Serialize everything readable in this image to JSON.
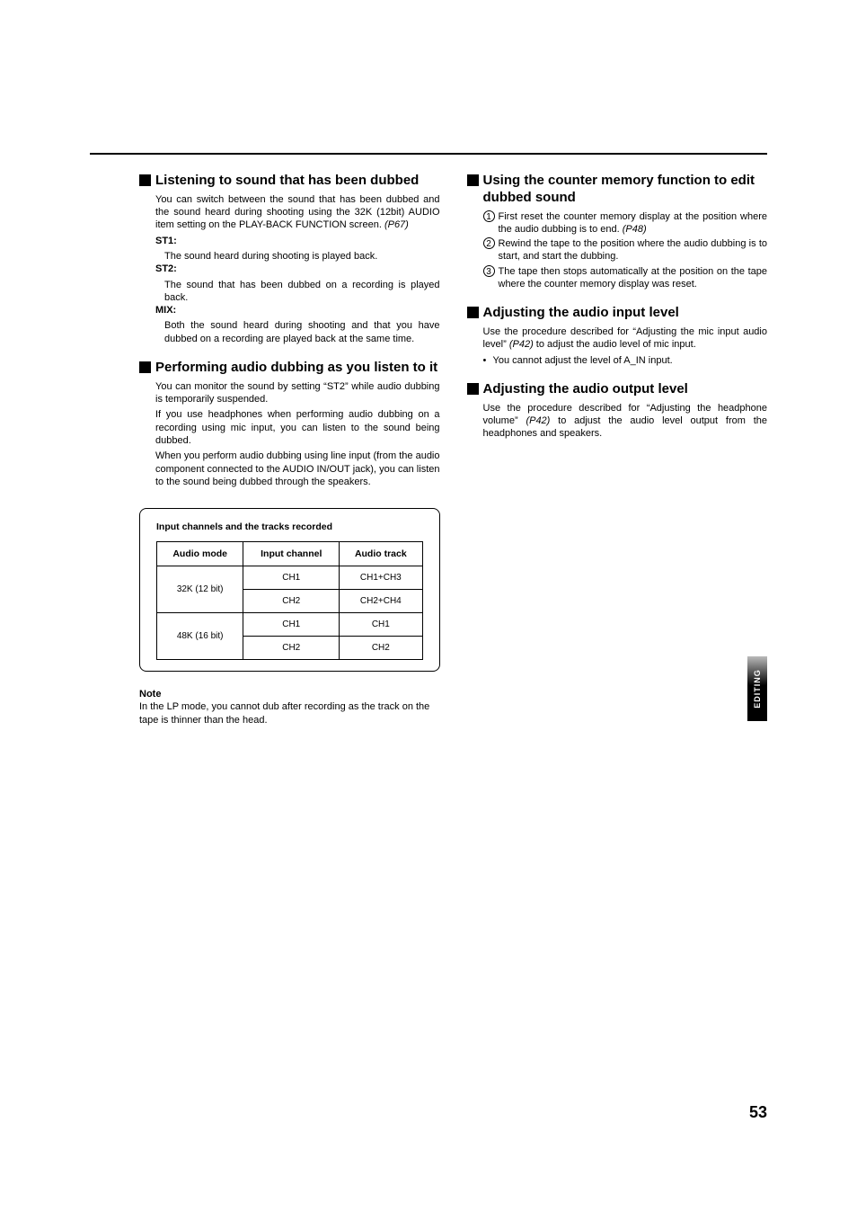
{
  "left": {
    "sec1": {
      "title": "Listening to sound that has been dubbed",
      "p1": "You can switch between the sound that has been dubbed and the sound heard during shooting using the 32K (12bit) AUDIO item setting on the PLAY-BACK FUNCTION screen. ",
      "p1_ref": "(P67)",
      "st1_label": "ST1:",
      "st1_text": "The sound heard during shooting is played back.",
      "st2_label": "ST2:",
      "st2_text": "The sound that has been dubbed on a recording is played back.",
      "mix_label": "MIX:",
      "mix_text": "Both the sound heard during shooting and that you have dubbed on a recording are played back at the same time."
    },
    "sec2": {
      "title": "Performing audio dubbing as you listen to it",
      "p1": "You can monitor the sound by setting “ST2” while audio dubbing is temporarily suspended.",
      "p2": "If you use headphones when performing audio dubbing on a recording using mic input, you can listen to the sound being dubbed.",
      "p3": "When you perform audio dubbing using line input (from the audio component connected to the AUDIO IN/OUT jack), you can listen to the sound being dubbed through the speakers."
    },
    "table": {
      "caption": "Input channels and the tracks recorded",
      "columns": [
        "Audio mode",
        "Input channel",
        "Audio track"
      ],
      "rows": [
        {
          "mode": "32K (12 bit)",
          "channel": "CH1",
          "track": "CH1+CH3"
        },
        {
          "mode": "",
          "channel": "CH2",
          "track": "CH2+CH4"
        },
        {
          "mode": "48K (16 bit)",
          "channel": "CH1",
          "track": "CH1"
        },
        {
          "mode": "",
          "channel": "CH2",
          "track": "CH2"
        }
      ]
    },
    "note": {
      "label": "Note",
      "text": "In the LP mode, you cannot dub after recording as the track on the tape is thinner than the head."
    }
  },
  "right": {
    "sec1": {
      "title": "Using the counter memory function to edit dubbed sound",
      "items": [
        {
          "n": "1",
          "text": "First reset the counter memory display at the position where the audio dubbing is to end. ",
          "ref": "(P48)"
        },
        {
          "n": "2",
          "text": "Rewind the tape to the position where the audio dubbing is to start, and start the dubbing.",
          "ref": ""
        },
        {
          "n": "3",
          "text": "The tape then stops automatically at the position on the tape where the counter memory display was reset.",
          "ref": ""
        }
      ]
    },
    "sec2": {
      "title": "Adjusting the audio input level",
      "p1a": "Use the procedure described for “Adjusting the mic input audio level” ",
      "p1_ref": "(P42)",
      "p1b": " to adjust the audio level of mic input.",
      "bullet1": "You cannot adjust the level of  A_IN input."
    },
    "sec3": {
      "title": "Adjusting the audio output level",
      "p1a": "Use the procedure described for “Adjusting the headphone volume” ",
      "p1_ref": "(P42)",
      "p1b": " to adjust the audio level output from the headphones and speakers."
    }
  },
  "side_tab": "EDITING",
  "page_number": "53"
}
